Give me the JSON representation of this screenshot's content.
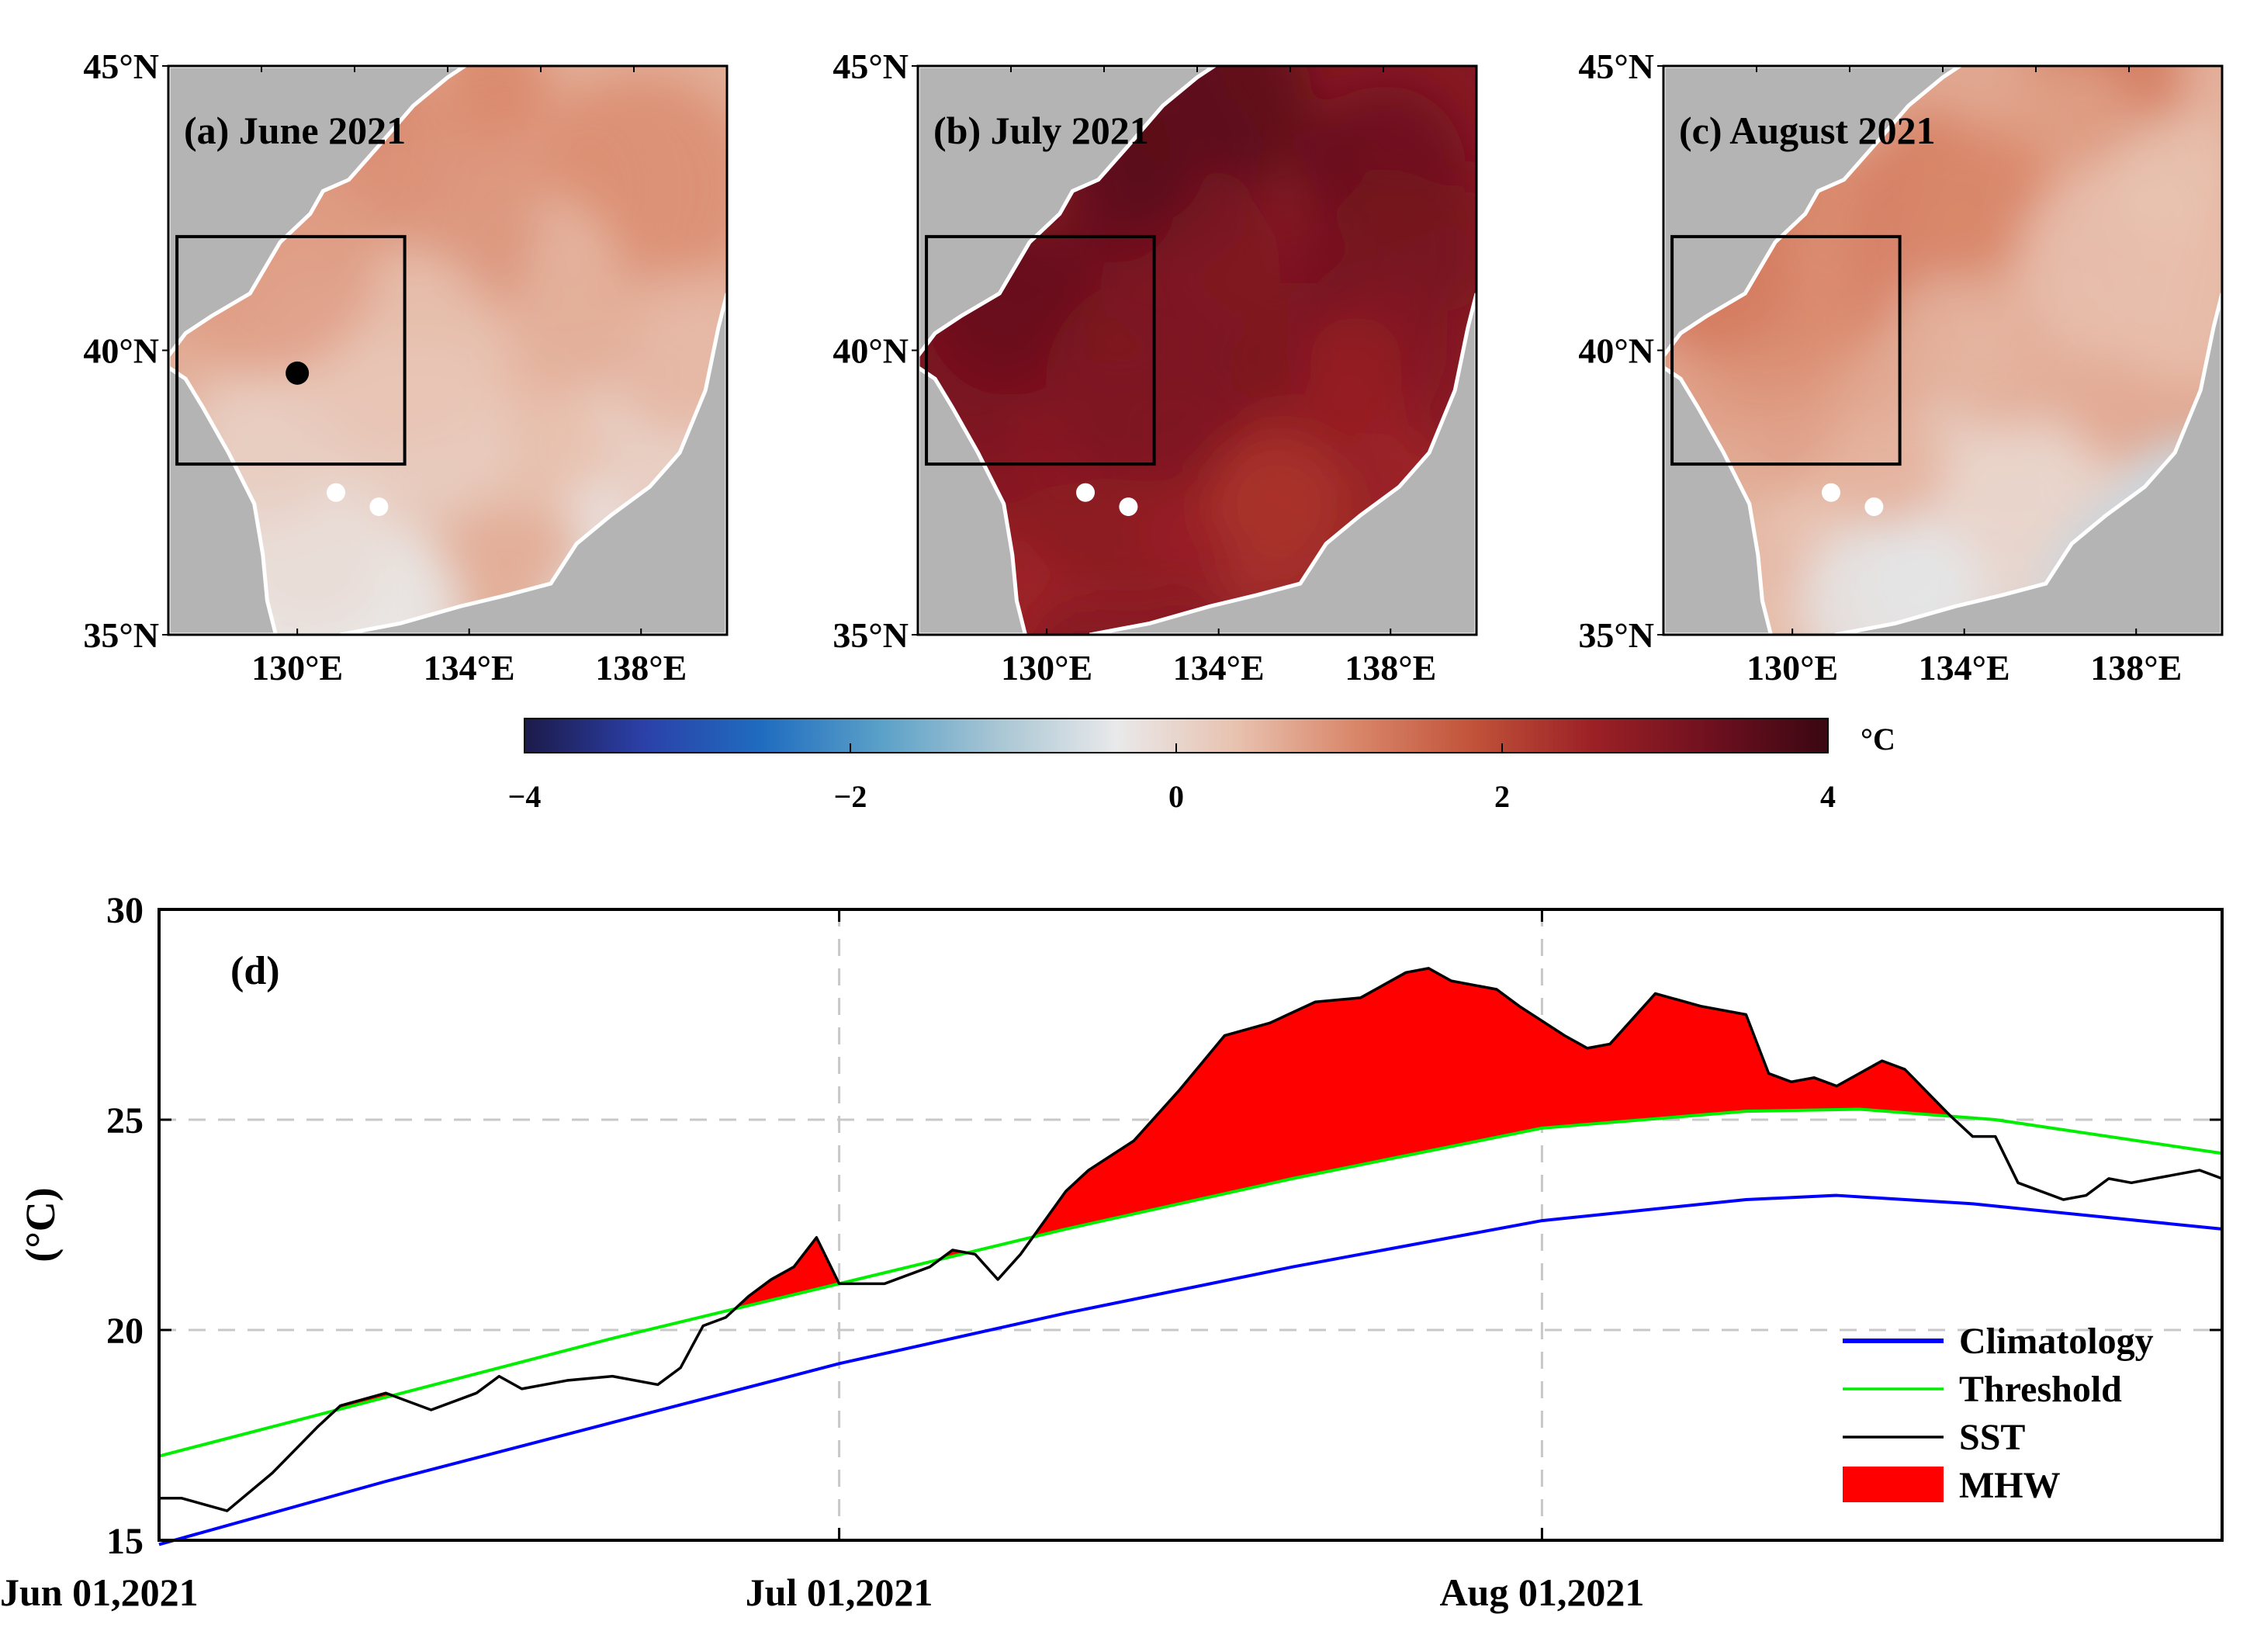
{
  "chart_data": [
    {
      "type": "heatmap",
      "id": "map-a",
      "title": "(a) June 2021",
      "y_ticks": [
        "45°N",
        "40°N",
        "35°N"
      ],
      "x_ticks": [
        "130°E",
        "134°E",
        "138°E"
      ],
      "x_tick_values": [
        130,
        134,
        138
      ],
      "y_tick_values": [
        45,
        40,
        35
      ],
      "xlim": [
        127,
        140
      ],
      "ylim": [
        35,
        45
      ],
      "box": {
        "lon": [
          127.2,
          132.5
        ],
        "lat": [
          38.0,
          42.0
        ]
      },
      "marker": {
        "lon": 130.0,
        "lat": 39.6
      },
      "pattern": "mild",
      "anomaly_range": [
        -0.6,
        1.8
      ]
    },
    {
      "type": "heatmap",
      "id": "map-b",
      "title": "(b) July 2021",
      "y_ticks": [
        "45°N",
        "40°N",
        "35°N"
      ],
      "x_ticks": [
        "130°E",
        "134°E",
        "138°E"
      ],
      "x_tick_values": [
        130,
        134,
        138
      ],
      "y_tick_values": [
        45,
        40,
        35
      ],
      "xlim": [
        127,
        140
      ],
      "ylim": [
        35,
        45
      ],
      "box": {
        "lon": [
          127.2,
          132.5
        ],
        "lat": [
          38.0,
          42.0
        ]
      },
      "pattern": "strong",
      "anomaly_range": [
        1.8,
        4.0
      ]
    },
    {
      "type": "heatmap",
      "id": "map-c",
      "title": "(c) August 2021",
      "y_ticks": [
        "45°N",
        "40°N",
        "35°N"
      ],
      "x_ticks": [
        "130°E",
        "134°E",
        "138°E"
      ],
      "x_tick_values": [
        130,
        134,
        138
      ],
      "y_tick_values": [
        45,
        40,
        35
      ],
      "xlim": [
        127,
        140
      ],
      "ylim": [
        35,
        45
      ],
      "box": {
        "lon": [
          127.2,
          132.5
        ],
        "lat": [
          38.0,
          42.0
        ]
      },
      "pattern": "moderate",
      "anomaly_range": [
        -0.8,
        2.2
      ]
    },
    {
      "type": "line",
      "id": "timeseries-d",
      "panel_label": "(d)",
      "ylabel": "(°C)",
      "ylim": [
        15,
        30
      ],
      "y_ticks": [
        15,
        20,
        25,
        30
      ],
      "x_ticks": [
        "Jun 01,2021",
        "Jul 01,2021",
        "Aug 01,2021"
      ],
      "x_tick_days": [
        0,
        30,
        61
      ],
      "x_range_days": [
        0,
        91
      ],
      "grid": true,
      "legend": "bottom-right",
      "legend_entries": [
        "Climatology",
        "Threshold",
        "SST",
        "MHW"
      ],
      "series": [
        {
          "name": "Climatology",
          "color": "#0000ff",
          "x": [
            0,
            10,
            20,
            30,
            40,
            50,
            61,
            70,
            74,
            80,
            91
          ],
          "values": [
            14.9,
            16.4,
            17.8,
            19.2,
            20.4,
            21.5,
            22.6,
            23.1,
            23.2,
            23.0,
            22.4
          ]
        },
        {
          "name": "Threshold",
          "color": "#00ee00",
          "x": [
            0,
            10,
            20,
            30,
            40,
            50,
            61,
            70,
            75,
            81,
            91
          ],
          "values": [
            17.0,
            18.4,
            19.8,
            21.1,
            22.4,
            23.6,
            24.8,
            25.2,
            25.25,
            25.0,
            24.2
          ]
        },
        {
          "name": "SST",
          "color": "#000000",
          "x": [
            0,
            1,
            3,
            5,
            7,
            8,
            10,
            12,
            14,
            15,
            16,
            18,
            20,
            22,
            23,
            24,
            25,
            26,
            27,
            28,
            29,
            30,
            32,
            34,
            35,
            36,
            37,
            38,
            40,
            41,
            43,
            45,
            47,
            49,
            51,
            53,
            55,
            56,
            57,
            59,
            60,
            62,
            63,
            64,
            66,
            68,
            69,
            70,
            71,
            72,
            73,
            74,
            75,
            76,
            77,
            79,
            80,
            81,
            82,
            84,
            85,
            86,
            87,
            88,
            89,
            90,
            91
          ],
          "values": [
            16.0,
            16.0,
            15.7,
            16.6,
            17.7,
            18.2,
            18.5,
            18.1,
            18.5,
            18.9,
            18.6,
            18.8,
            18.9,
            18.7,
            19.1,
            20.1,
            20.3,
            20.8,
            21.2,
            21.5,
            22.2,
            21.1,
            21.1,
            21.5,
            21.9,
            21.8,
            21.2,
            21.8,
            23.3,
            23.8,
            24.5,
            25.7,
            27.0,
            27.3,
            27.8,
            27.9,
            28.5,
            28.6,
            28.3,
            28.1,
            27.7,
            27.0,
            26.7,
            26.8,
            28.0,
            27.7,
            27.6,
            27.5,
            26.1,
            25.9,
            26.0,
            25.8,
            26.1,
            26.4,
            26.2,
            25.1,
            24.6,
            24.6,
            23.5,
            23.1,
            23.2,
            23.6,
            23.5,
            23.6,
            23.7,
            23.8,
            23.6
          ]
        },
        {
          "name": "MHW",
          "color": "#ff0000",
          "fill": true
        }
      ]
    }
  ],
  "colorbar": {
    "type": "colorbar",
    "tick_values": [
      -4,
      -2,
      0,
      2,
      4
    ],
    "tick_labels": [
      "−4",
      "−2",
      "0",
      "2",
      "4"
    ],
    "unit": "°C",
    "range": [
      -4,
      4
    ],
    "colors": [
      "#1c1a4a",
      "#2b40a8",
      "#1f6cc0",
      "#5aa0c8",
      "#a9c6d4",
      "#e9e9ea",
      "#e8c2b0",
      "#d9876a",
      "#c1533a",
      "#9c2126",
      "#6f101f",
      "#3a0712"
    ]
  },
  "colors": {
    "land": "#b4b4b4",
    "climatology": "#0000ff",
    "threshold": "#00ee00",
    "sst": "#000000",
    "mhw": "#ff0000"
  }
}
